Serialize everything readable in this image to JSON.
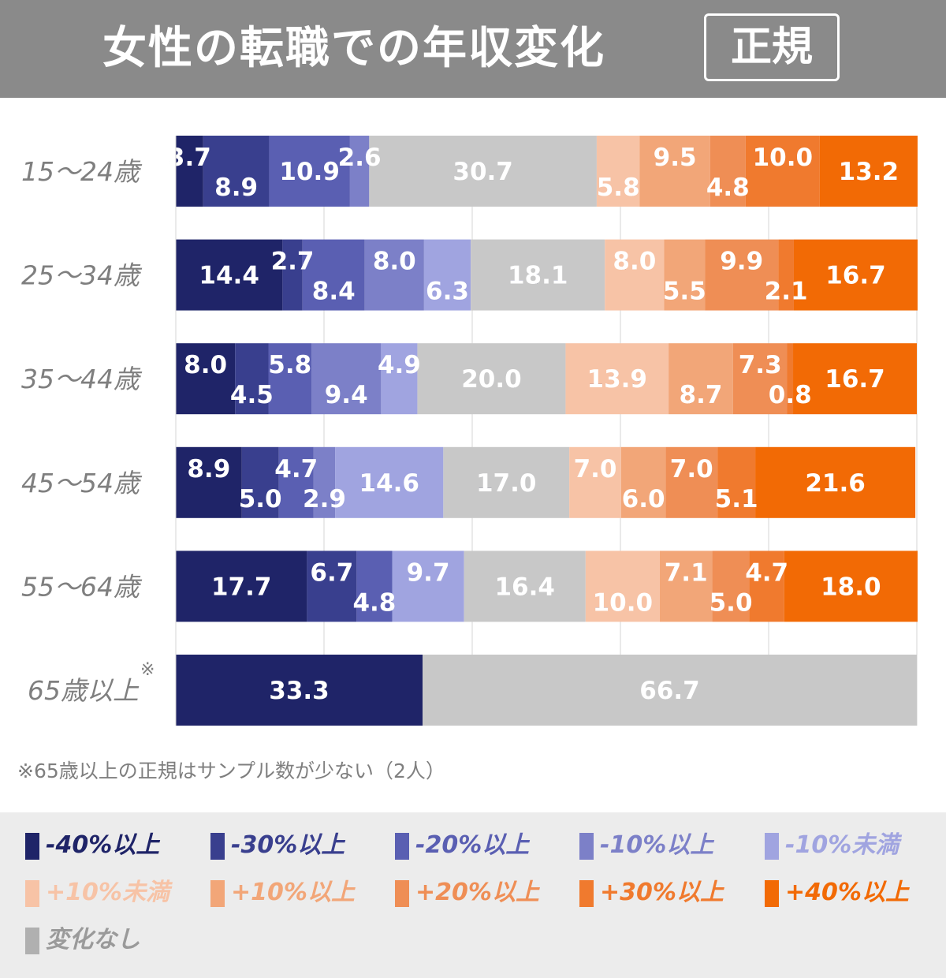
{
  "header": {
    "title": "女性の転職での年収変化",
    "badge": "正規"
  },
  "chart_data": {
    "type": "bar",
    "orientation": "horizontal-stacked-100",
    "title": "女性の転職での年収変化",
    "subtitle": "正規",
    "categories": [
      "15〜24歳",
      "25〜34歳",
      "35〜44歳",
      "45〜54歳",
      "55〜64歳",
      "65歳以上"
    ],
    "category_note": "※",
    "xlim": [
      0,
      100
    ],
    "grid": true,
    "series": [
      {
        "name": "-40%以上",
        "color": "#1f2468",
        "label_color": "#ffffff",
        "values": [
          3.7,
          14.4,
          8.0,
          8.9,
          17.7,
          33.3
        ]
      },
      {
        "name": "-30%以上",
        "color": "#393f8e",
        "label_color": "#ffffff",
        "values": [
          8.9,
          2.7,
          4.5,
          5.0,
          6.7,
          0
        ]
      },
      {
        "name": "-20%以上",
        "color": "#5a5fb2",
        "label_color": "#ffffff",
        "values": [
          10.9,
          8.4,
          5.8,
          4.7,
          4.8,
          0
        ]
      },
      {
        "name": "-10%以上",
        "color": "#7c80c8",
        "label_color": "#ffffff",
        "values": [
          2.6,
          8.0,
          9.4,
          2.9,
          0,
          0
        ]
      },
      {
        "name": "-10%未満",
        "color": "#a0a4e0",
        "label_color": "#ffffff",
        "values": [
          0,
          6.3,
          4.9,
          14.6,
          9.7,
          0
        ]
      },
      {
        "name": "変化なし",
        "color": "#c8c8c8",
        "label_color": "#ffffff",
        "values": [
          30.7,
          18.1,
          20.0,
          17.0,
          16.4,
          66.7
        ]
      },
      {
        "name": "+10%未満",
        "color": "#f7c3a6",
        "label_color": "#ffffff",
        "values": [
          5.8,
          8.0,
          13.9,
          7.0,
          10.0,
          0
        ]
      },
      {
        "name": "+10%以上",
        "color": "#f2a678",
        "label_color": "#ffffff",
        "values": [
          9.5,
          5.5,
          8.7,
          6.0,
          7.1,
          0
        ]
      },
      {
        "name": "+20%以上",
        "color": "#ef8e55",
        "label_color": "#ffffff",
        "values": [
          4.8,
          9.9,
          7.3,
          7.0,
          5.0,
          0
        ]
      },
      {
        "name": "+30%以上",
        "color": "#f07a2e",
        "label_color": "#ffffff",
        "values": [
          10.0,
          2.1,
          0.8,
          5.1,
          4.7,
          0
        ]
      },
      {
        "name": "+40%以上",
        "color": "#f26a05",
        "label_color": "#ffffff",
        "values": [
          13.2,
          16.7,
          16.7,
          21.6,
          18.0,
          0
        ]
      }
    ],
    "legend_order": [
      "-40%以上",
      "-30%以上",
      "-20%以上",
      "-10%以上",
      "-10%未満",
      "+10%未満",
      "+10%以上",
      "+20%以上",
      "+30%以上",
      "+40%以上",
      "変化なし"
    ],
    "legend_colors": [
      "#1f2468",
      "#393f8e",
      "#5a5fb2",
      "#7c80c8",
      "#a0a4e0",
      "#f7c3a6",
      "#f2a678",
      "#ef8e55",
      "#f07a2e",
      "#f26a05",
      "#b0b0b0"
    ],
    "legend_text_colors": [
      "#1f2468",
      "#393f8e",
      "#5a5fb2",
      "#7c80c8",
      "#a0a4e0",
      "#f7c3a6",
      "#f2a678",
      "#ef8e55",
      "#f07a2e",
      "#f26a05",
      "#9a9a9a"
    ],
    "legend_placement": "bottom",
    "footnote": "※65歳以上の正規はサンプル数が少ない（2人）"
  }
}
